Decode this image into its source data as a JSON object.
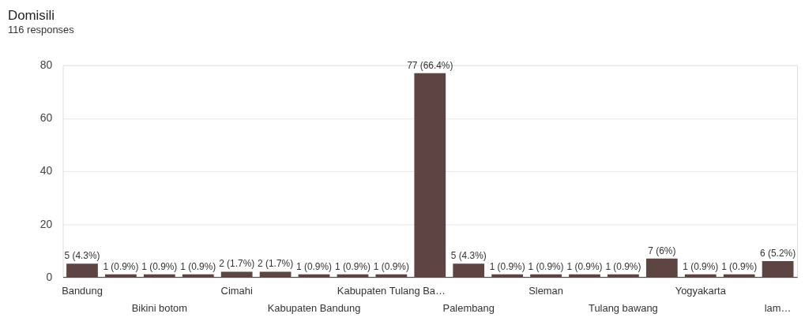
{
  "chart_data": {
    "type": "bar",
    "title": "Domisili",
    "subtitle": "116 responses",
    "categories": [
      "Bandung",
      null,
      "Bikini botom",
      null,
      "Cimahi",
      null,
      "Kabupaten Bandung",
      null,
      "Kabupaten Tulang Ba…",
      null,
      "Palembang",
      null,
      "Sleman",
      null,
      "Tulang bawang",
      null,
      "Yogyakarta",
      null,
      "lam…"
    ],
    "values": [
      5,
      1,
      1,
      1,
      2,
      2,
      1,
      1,
      1,
      77,
      5,
      1,
      1,
      1,
      1,
      7,
      1,
      1,
      6
    ],
    "value_labels": [
      "5 (4.3%)",
      "1 (0.9%)",
      "1 (0.9%)",
      "1 (0.9%)",
      "2 (1.7%)",
      "2 (1.7%)",
      "1 (0.9%)",
      "1 (0.9%)",
      "1 (0.9%)",
      "77 (66.4%)",
      "5 (4.3%)",
      "1 (0.9%)",
      "1 (0.9%)",
      "1 (0.9%)",
      "1 (0.9%)",
      "7 (6%)",
      "1 (0.9%)",
      "1 (0.9%)",
      "6 (5.2%)"
    ],
    "color": "#5d4544",
    "ylim": [
      0,
      80
    ],
    "yticks": [
      0,
      20,
      40,
      60,
      80
    ],
    "grid": "y"
  }
}
